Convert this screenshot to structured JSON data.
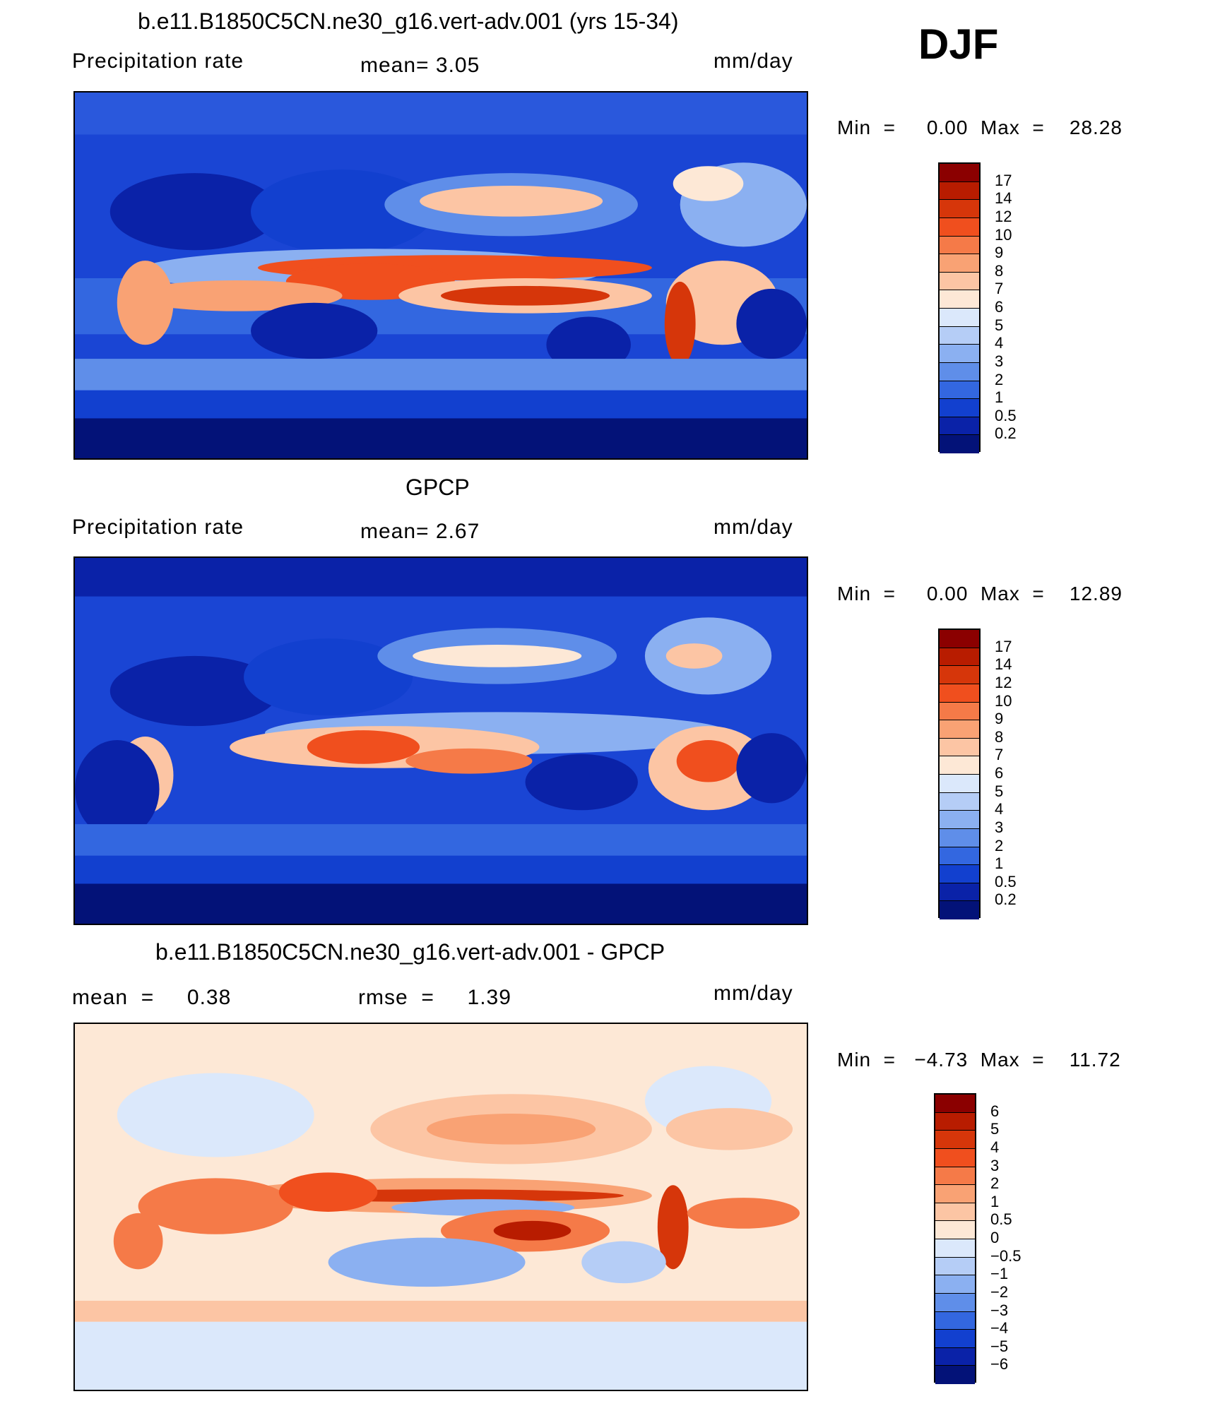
{
  "season": "DJF",
  "panels": [
    {
      "title": "b.e11.B1850C5CN.ne30_g16.vert-adv.001 (yrs 15-34)",
      "left_label": "Precipitation  rate",
      "mid_label": "mean=    3.05",
      "units": "mm/day",
      "minmax": "Min  =     0.00  Max  =    28.28"
    },
    {
      "title": "GPCP",
      "left_label": "Precipitation  rate",
      "mid_label": "mean=    2.67",
      "units": "mm/day",
      "minmax": "Min  =     0.00  Max  =    12.89"
    },
    {
      "title": "b.e11.B1850C5CN.ne30_g16.vert-adv.001 - GPCP",
      "left_label": "mean  =     0.38",
      "mid_label": "rmse  =     1.39",
      "units": "mm/day",
      "minmax": "Min  =   −4.73  Max  =    11.72"
    }
  ],
  "chart_data": [
    {
      "type": "heatmap",
      "title": "b.e11.B1850C5CN.ne30_g16.vert-adv.001 (yrs 15-34)",
      "variable": "Precipitation  rate",
      "units": "mm/day",
      "mean": 3.05,
      "min": 0.0,
      "max": 28.28,
      "colorbar_levels": [
        "17",
        "14",
        "12",
        "10",
        "9",
        "8",
        "7",
        "6",
        "5",
        "4",
        "3",
        "2",
        "1",
        "0.5",
        "0.2"
      ],
      "colorbar_colors": [
        "#8b0000",
        "#b81c00",
        "#d6360a",
        "#f04f1e",
        "#f57a48",
        "#f9a274",
        "#fcc5a4",
        "#fde8d6",
        "#dbe8fb",
        "#b5cdf6",
        "#8bb0f1",
        "#5f8ee9",
        "#3367e0",
        "#1240cf",
        "#0a22a8",
        "#031278"
      ]
    },
    {
      "type": "heatmap",
      "title": "GPCP",
      "variable": "Precipitation  rate",
      "units": "mm/day",
      "mean": 2.67,
      "min": 0.0,
      "max": 12.89,
      "colorbar_levels": [
        "17",
        "14",
        "12",
        "10",
        "9",
        "8",
        "7",
        "6",
        "5",
        "4",
        "3",
        "2",
        "1",
        "0.5",
        "0.2"
      ],
      "colorbar_colors": [
        "#8b0000",
        "#b81c00",
        "#d6360a",
        "#f04f1e",
        "#f57a48",
        "#f9a274",
        "#fcc5a4",
        "#fde8d6",
        "#dbe8fb",
        "#b5cdf6",
        "#8bb0f1",
        "#5f8ee9",
        "#3367e0",
        "#1240cf",
        "#0a22a8",
        "#031278"
      ]
    },
    {
      "type": "heatmap",
      "title": "b.e11.B1850C5CN.ne30_g16.vert-adv.001 - GPCP",
      "units": "mm/day",
      "mean": 0.38,
      "rmse": 1.39,
      "min": -4.73,
      "max": 11.72,
      "colorbar_levels": [
        "6",
        "5",
        "4",
        "3",
        "2",
        "1",
        "0.5",
        "0",
        "−0.5",
        "−1",
        "−2",
        "−3",
        "−4",
        "−5",
        "−6"
      ],
      "colorbar_colors": [
        "#8b0000",
        "#b81c00",
        "#d6360a",
        "#f04f1e",
        "#f57a48",
        "#f9a274",
        "#fcc5a4",
        "#fde8d6",
        "#dbe8fb",
        "#b5cdf6",
        "#8bb0f1",
        "#5f8ee9",
        "#3367e0",
        "#1240cf",
        "#0a22a8",
        "#031278"
      ]
    }
  ]
}
